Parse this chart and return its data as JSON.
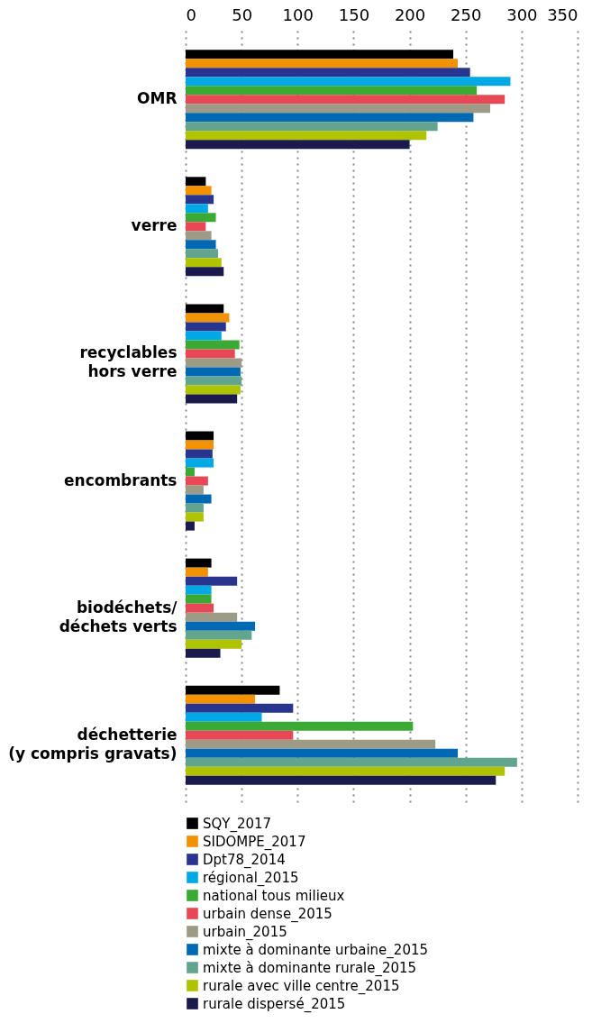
{
  "chart_data": {
    "type": "bar",
    "orientation": "horizontal",
    "categories": [
      "OMR",
      "verre",
      "recyclables\nhors verre",
      "encombrants",
      "biodéchets/\ndéchets verts",
      "déchetterie\n(y compris gravats)"
    ],
    "xlim": [
      0,
      350
    ],
    "xticks": [
      0,
      50,
      100,
      150,
      200,
      250,
      300,
      350
    ],
    "grid": "x",
    "legend": "bottom",
    "series": [
      {
        "name": "SQY_2017",
        "color": "#000000",
        "values": [
          239,
          18,
          34,
          25,
          23,
          84
        ]
      },
      {
        "name": "SIDOMPE_2017",
        "color": "#f39200",
        "values": [
          243,
          23,
          39,
          25,
          20,
          62
        ]
      },
      {
        "name": "Dpt78_2014",
        "color": "#29348e",
        "values": [
          254,
          25,
          36,
          24,
          46,
          96
        ]
      },
      {
        "name": "régional_2015",
        "color": "#00a8e6",
        "values": [
          290,
          20,
          32,
          25,
          23,
          68
        ]
      },
      {
        "name": "national tous milieux",
        "color": "#3aaa35",
        "values": [
          260,
          27,
          48,
          8,
          23,
          203
        ]
      },
      {
        "name": "urbain dense_2015",
        "color": "#e84855",
        "values": [
          285,
          18,
          44,
          20,
          25,
          96
        ]
      },
      {
        "name": "urbain_2015",
        "color": "#9d9a86",
        "values": [
          272,
          23,
          50,
          16,
          46,
          223
        ]
      },
      {
        "name": "mixte à dominante urbaine_2015",
        "color": "#0069b3",
        "values": [
          257,
          27,
          49,
          23,
          62,
          243
        ]
      },
      {
        "name": "mixte à dominante rurale_2015",
        "color": "#62a58e",
        "values": [
          225,
          29,
          50,
          16,
          59,
          296
        ]
      },
      {
        "name": "rurale avec ville centre_2015",
        "color": "#afc300",
        "values": [
          215,
          32,
          49,
          16,
          50,
          285
        ]
      },
      {
        "name": "rurale dispersé_2015",
        "color": "#1b1a4c",
        "values": [
          200,
          34,
          46,
          8,
          31,
          277
        ]
      }
    ]
  }
}
